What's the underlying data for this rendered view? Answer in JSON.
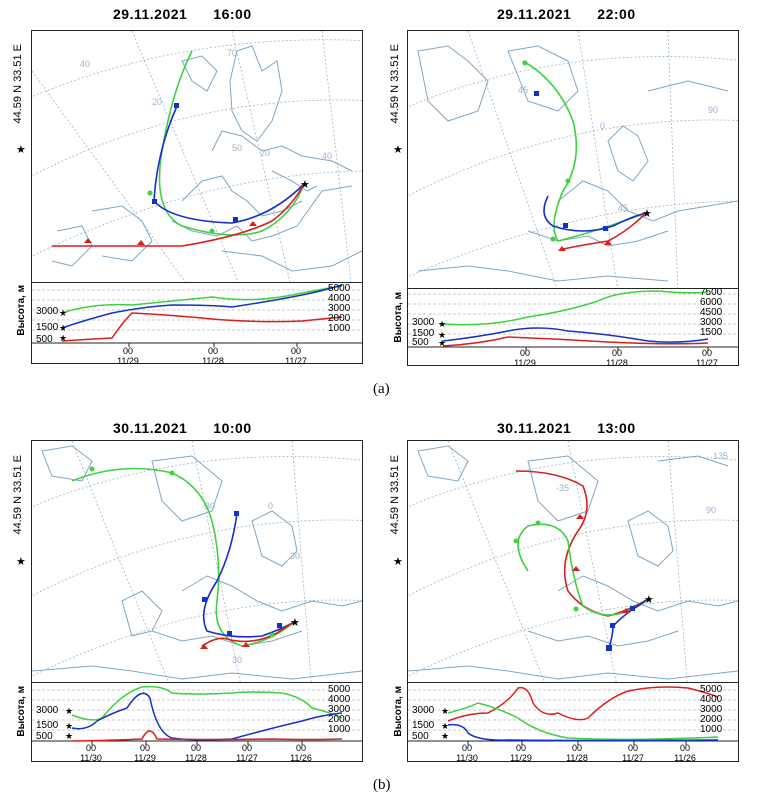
{
  "panels": [
    {
      "date": "29.11.2021",
      "time": "16:00",
      "location": "44.59 N   33.51 E",
      "grid_labels": [
        "40",
        "70",
        "20",
        "50",
        "20",
        "40"
      ],
      "altitude_label": "Высота, м",
      "left_levels": [
        "3000",
        "1500",
        "500"
      ],
      "right_levels": [
        "5000",
        "4000",
        "3000",
        "2000",
        "1000"
      ],
      "time_ticks": [
        {
          "hour": "00",
          "date": "11/29"
        },
        {
          "hour": "00",
          "date": "11/28"
        },
        {
          "hour": "00",
          "date": "11/27"
        }
      ]
    },
    {
      "date": "29.11.2021",
      "time": "22:00",
      "location": "44.59 N   33.51 E",
      "grid_labels": [
        "45",
        "90",
        "0",
        "45"
      ],
      "altitude_label": "Высота, м",
      "left_levels": [
        "3000",
        "1500",
        "500"
      ],
      "right_levels": [
        "7500",
        "6000",
        "4500",
        "3000",
        "1500"
      ],
      "time_ticks": [
        {
          "hour": "00",
          "date": "11/29"
        },
        {
          "hour": "00",
          "date": "11/28"
        },
        {
          "hour": "00",
          "date": "11/27"
        }
      ]
    },
    {
      "date": "30.11.2021",
      "time": "10:00",
      "location": "44.59 N   33.51 E",
      "grid_labels": [
        "-30",
        "0",
        "30",
        "30"
      ],
      "altitude_label": "Высота, м",
      "left_levels": [
        "3000",
        "1500",
        "500"
      ],
      "right_levels": [
        "5000",
        "4000",
        "3000",
        "2000",
        "1000"
      ],
      "time_ticks": [
        {
          "hour": "00",
          "date": "11/30"
        },
        {
          "hour": "00",
          "date": "11/29"
        },
        {
          "hour": "00",
          "date": "11/28"
        },
        {
          "hour": "00",
          "date": "11/27"
        },
        {
          "hour": "00",
          "date": "11/26"
        }
      ]
    },
    {
      "date": "30.11.2021",
      "time": "13:00",
      "location": "44.59 N   33.51 E",
      "grid_labels": [
        "135",
        "-35",
        "90"
      ],
      "altitude_label": "Высота, м",
      "left_levels": [
        "3000",
        "1500",
        "500"
      ],
      "right_levels": [
        "5000",
        "4000",
        "3000",
        "2000",
        "1000"
      ],
      "time_ticks": [
        {
          "hour": "00",
          "date": "11/30"
        },
        {
          "hour": "00",
          "date": "11/29"
        },
        {
          "hour": "00",
          "date": "11/28"
        },
        {
          "hour": "00",
          "date": "11/27"
        },
        {
          "hour": "00",
          "date": "11/26"
        }
      ]
    }
  ],
  "star": "★",
  "captions": {
    "a": "(a)",
    "b": "(b)"
  },
  "colors": {
    "red": "#d81f1f",
    "blue": "#1530c8",
    "green": "#3fd13f",
    "coast": "#7fa6c6",
    "grid": "#9ab4cc"
  }
}
